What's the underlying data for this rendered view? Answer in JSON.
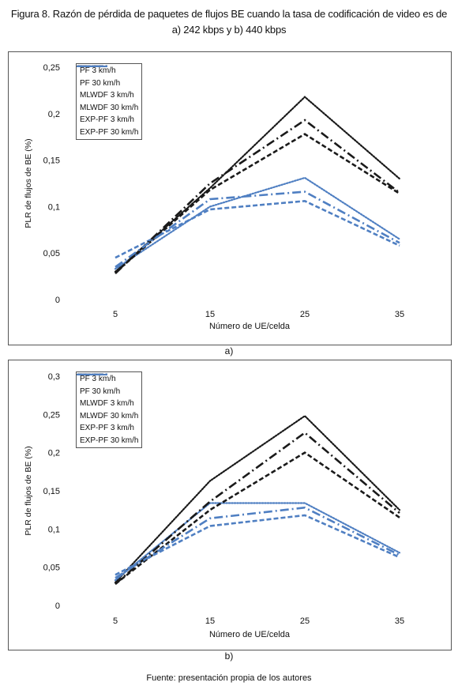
{
  "figure": {
    "title_line1": "Figura 8. Razón de pérdida de paquetes de flujos BE cuando la tasa de codificación de video es de",
    "title_line2": "a) 242 kbps y b) 440 kbps",
    "source": "Fuente: presentación propia de los autores"
  },
  "chart_data": [
    {
      "type": "line",
      "panel_label": "a)",
      "x": [
        5,
        15,
        25,
        35
      ],
      "xlabel": "Número de UE/celda",
      "ylabel": "PLR de flujos de BE (%)",
      "ylim": [
        0,
        0.25
      ],
      "yticks": [
        0,
        0.05,
        0.1,
        0.15,
        0.2,
        0.25
      ],
      "ytick_labels": [
        "0",
        "0,05",
        "0,1",
        "0,15",
        "0,2",
        "0,25"
      ],
      "grid": false,
      "legend_position": "top-left",
      "series": [
        {
          "name": "PF 3 km/h",
          "color": "#1a1a1a",
          "style": "dotted",
          "values": [
            0.03,
            0.12,
            0.218,
            0.13
          ]
        },
        {
          "name": "PF 30 km/h",
          "color": "#4f7fc2",
          "style": "dotted",
          "values": [
            0.033,
            0.1,
            0.131,
            0.065
          ]
        },
        {
          "name": "MLWDF 3 km/h",
          "color": "#1a1a1a",
          "style": "dashed",
          "values": [
            0.029,
            0.118,
            0.178,
            0.114
          ]
        },
        {
          "name": "MLWDF 30 km/h",
          "color": "#4f7fc2",
          "style": "dashed",
          "values": [
            0.045,
            0.097,
            0.106,
            0.058
          ]
        },
        {
          "name": "EXP-PF 3 km/h",
          "color": "#1a1a1a",
          "style": "dashdot",
          "values": [
            0.028,
            0.125,
            0.193,
            0.115
          ]
        },
        {
          "name": "EXP-PF 30 km/h",
          "color": "#4f7fc2",
          "style": "dashdot",
          "values": [
            0.035,
            0.108,
            0.116,
            0.061
          ]
        }
      ]
    },
    {
      "type": "line",
      "panel_label": "b)",
      "x": [
        5,
        15,
        25,
        35
      ],
      "xlabel": "Número de UE/celda",
      "ylabel": "PLR de flujos de BE (%)",
      "ylim": [
        0,
        0.3
      ],
      "yticks": [
        0,
        0.05,
        0.1,
        0.15,
        0.2,
        0.25,
        0.3
      ],
      "ytick_labels": [
        "0",
        "0,05",
        "0,1",
        "0,15",
        "0,2",
        "0,25",
        "0,3"
      ],
      "grid": false,
      "legend_position": "top-left",
      "series": [
        {
          "name": "PF 3 km/h",
          "color": "#1a1a1a",
          "style": "dotted",
          "values": [
            0.03,
            0.163,
            0.248,
            0.125
          ]
        },
        {
          "name": "PF 30 km/h",
          "color": "#4f7fc2",
          "style": "dotted",
          "values": [
            0.033,
            0.134,
            0.134,
            0.069
          ]
        },
        {
          "name": "MLWDF 3 km/h",
          "color": "#1a1a1a",
          "style": "dashed",
          "values": [
            0.028,
            0.125,
            0.2,
            0.115
          ]
        },
        {
          "name": "MLWDF 30 km/h",
          "color": "#4f7fc2",
          "style": "dashed",
          "values": [
            0.04,
            0.104,
            0.118,
            0.063
          ]
        },
        {
          "name": "EXP-PF 3 km/h",
          "color": "#1a1a1a",
          "style": "dashdot",
          "values": [
            0.028,
            0.136,
            0.226,
            0.121
          ]
        },
        {
          "name": "EXP-PF 30 km/h",
          "color": "#4f7fc2",
          "style": "dashdot",
          "values": [
            0.036,
            0.114,
            0.128,
            0.066
          ]
        }
      ]
    }
  ]
}
